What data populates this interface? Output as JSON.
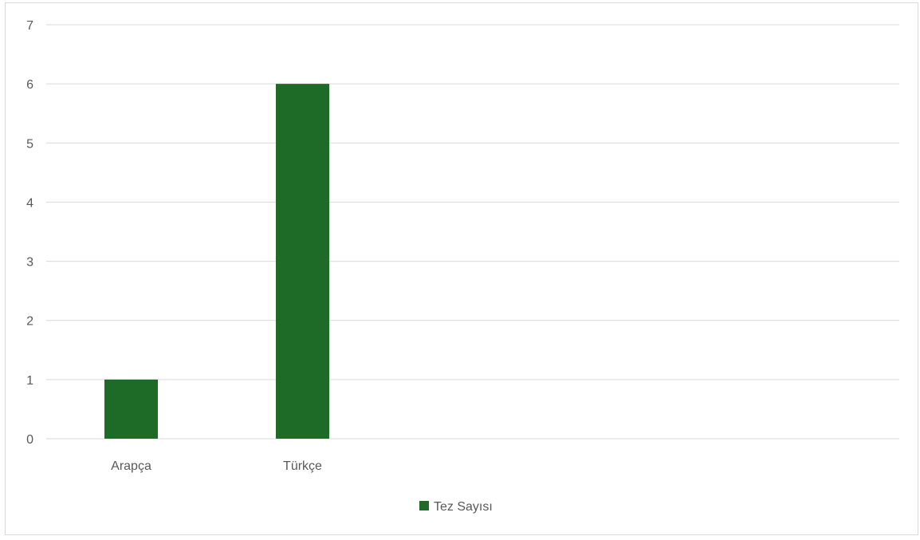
{
  "chart_data": {
    "type": "bar",
    "categories": [
      "Arapça",
      "Türkçe"
    ],
    "series": [
      {
        "name": "Tez Sayısı",
        "values": [
          1,
          6
        ]
      }
    ],
    "title": "",
    "xlabel": "",
    "ylabel": "",
    "ylim": [
      0,
      7
    ],
    "yticks": [
      "0",
      "1",
      "2",
      "3",
      "4",
      "5",
      "6",
      "7"
    ],
    "grid": true,
    "legend": "bottom",
    "colors": {
      "bar": "#1e6b28",
      "grid": "#d9d9d9",
      "text": "#595959"
    }
  }
}
